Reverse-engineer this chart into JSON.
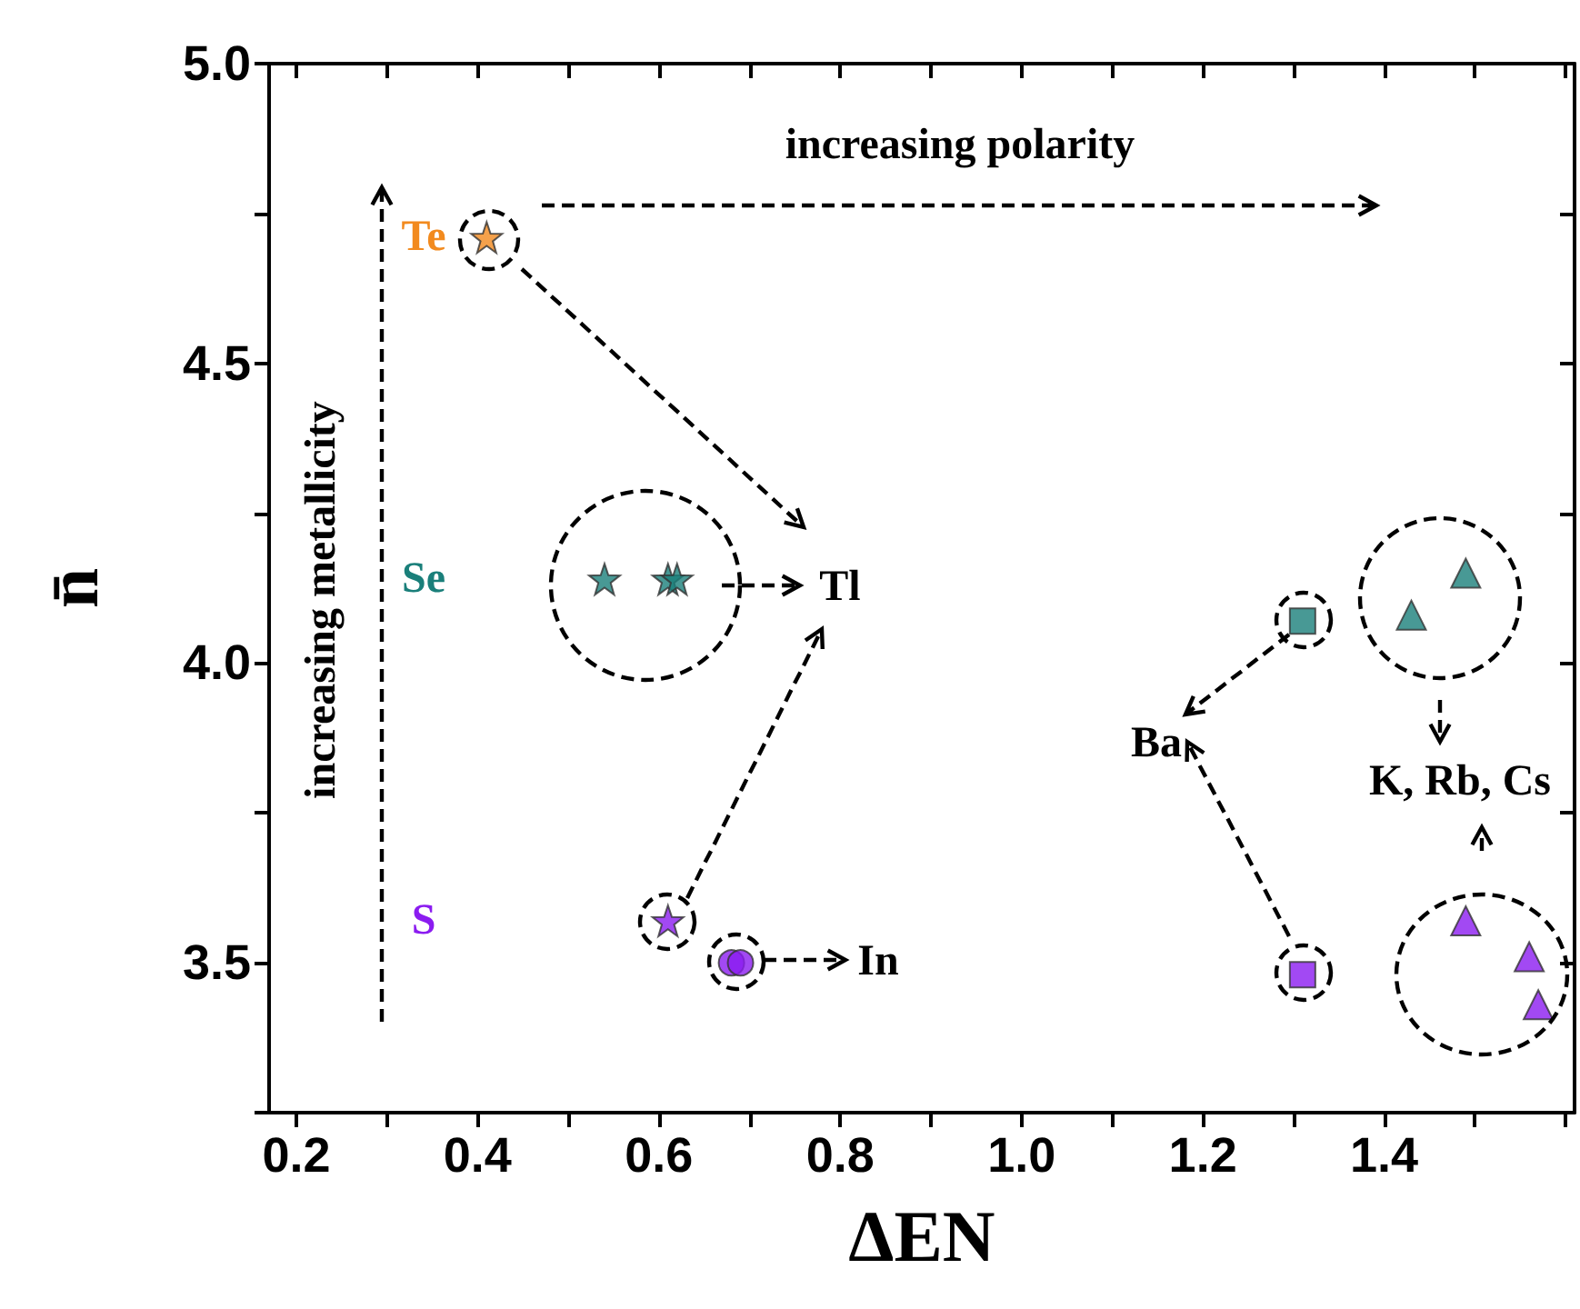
{
  "chart_data": {
    "type": "scatter",
    "xlabel": "ΔEN",
    "ylabel": "n̄",
    "xlim": [
      0.17,
      1.61
    ],
    "xticks": [
      {
        "value": 0.2,
        "label": "0.2"
      },
      {
        "value": 0.3,
        "label": null
      },
      {
        "value": 0.4,
        "label": "0.4"
      },
      {
        "value": 0.5,
        "label": null
      },
      {
        "value": 0.6,
        "label": "0.6"
      },
      {
        "value": 0.7,
        "label": null
      },
      {
        "value": 0.8,
        "label": "0.8"
      },
      {
        "value": 0.9,
        "label": null
      },
      {
        "value": 1.0,
        "label": "1.0"
      },
      {
        "value": 1.1,
        "label": null
      },
      {
        "value": 1.2,
        "label": "1.2"
      },
      {
        "value": 1.3,
        "label": null
      },
      {
        "value": 1.4,
        "label": "1.4"
      },
      {
        "value": 1.5,
        "label": null
      },
      {
        "value": 1.6,
        "label": null
      }
    ],
    "ylim": [
      3.25,
      5.0
    ],
    "yticks": [
      {
        "value": 3.25,
        "label": null
      },
      {
        "value": 3.5,
        "label": "3.5"
      },
      {
        "value": 3.75,
        "label": null
      },
      {
        "value": 4.0,
        "label": "4.0"
      },
      {
        "value": 4.25,
        "label": null
      },
      {
        "value": 4.5,
        "label": "4.5"
      },
      {
        "value": 4.75,
        "label": null
      },
      {
        "value": 5.0,
        "label": "5.0"
      }
    ],
    "grid": false,
    "legend": false,
    "series": [
      {
        "name": "Te",
        "color": "#f28a1e",
        "marker": "star",
        "x": [
          0.41
        ],
        "values": [
          4.71
        ]
      },
      {
        "name": "Se",
        "color": "#1a7f7a",
        "marker": "star",
        "x": [
          0.54,
          0.61,
          0.62
        ],
        "values": [
          4.14,
          4.14,
          4.14
        ]
      },
      {
        "name": "S",
        "color": "#8b1cf0",
        "marker": "star",
        "x": [
          0.61
        ],
        "values": [
          3.57
        ]
      },
      {
        "color": "#8b1cf0",
        "marker": "circle",
        "x": [
          0.68,
          0.69
        ],
        "values": [
          3.5,
          3.5
        ]
      },
      {
        "color": "#1a7f7a",
        "marker": "square",
        "x": [
          1.31
        ],
        "values": [
          4.07
        ]
      },
      {
        "color": "#8b1cf0",
        "marker": "square",
        "x": [
          1.31
        ],
        "values": [
          3.48
        ]
      },
      {
        "color": "#1a7f7a",
        "marker": "triangle",
        "x": [
          1.43,
          1.49
        ],
        "values": [
          4.08,
          4.15
        ]
      },
      {
        "color": "#8b1cf0",
        "marker": "triangle",
        "x": [
          1.49,
          1.56,
          1.57
        ],
        "values": [
          3.57,
          3.51,
          3.43
        ]
      }
    ],
    "annotations": [
      "increasing polarity",
      "increasing metallicity",
      "Tl",
      "In",
      "Ba",
      "K, Rb, Cs"
    ]
  }
}
